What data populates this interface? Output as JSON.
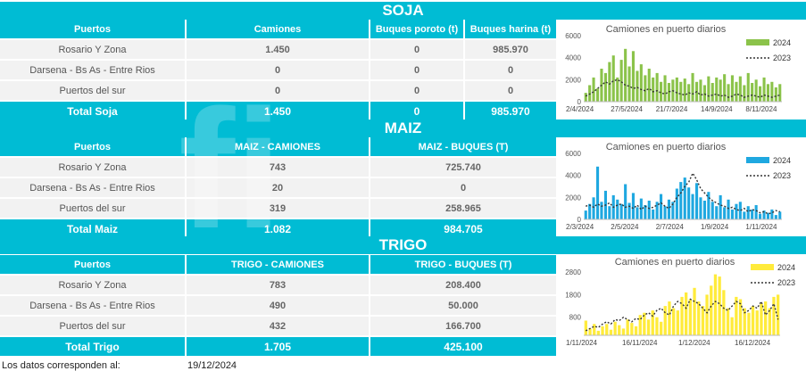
{
  "soja": {
    "title": "SOJA",
    "headers": [
      "Puertos",
      "Camiones",
      "Buques poroto (t)",
      "Buques harina (t)"
    ],
    "rows": [
      [
        "Rosario Y Zona",
        "1.450",
        "0",
        "985.970"
      ],
      [
        "Darsena - Bs As - Entre Rios",
        "0",
        "0",
        "0"
      ],
      [
        "Puertos del sur",
        "0",
        "0",
        "0"
      ]
    ],
    "total": [
      "Total Soja",
      "1.450",
      "0",
      "985.970"
    ]
  },
  "maiz": {
    "title": "MAIZ",
    "headers": [
      "Puertos",
      "MAIZ - CAMIONES",
      "MAIZ - BUQUES (T)"
    ],
    "rows": [
      [
        "Rosario Y Zona",
        "743",
        "725.740"
      ],
      [
        "Darsena - Bs As - Entre Rios",
        "20",
        "0"
      ],
      [
        "Puertos del sur",
        "319",
        "258.965"
      ]
    ],
    "total": [
      "Total Maiz",
      "1.082",
      "984.705"
    ]
  },
  "trigo": {
    "title": "TRIGO",
    "headers": [
      "Puertos",
      "TRIGO - CAMIONES",
      "TRIGO - BUQUES (T)"
    ],
    "rows": [
      [
        "Rosario Y Zona",
        "783",
        "208.400"
      ],
      [
        "Darsena - Bs As - Entre Rios",
        "490",
        "50.000"
      ],
      [
        "Puertos del sur",
        "432",
        "166.700"
      ]
    ],
    "total": [
      "Total Trigo",
      "1.705",
      "425.100"
    ]
  },
  "footer": {
    "label": "Los datos corresponden al:",
    "date": "19/12/2024"
  },
  "chart_data": [
    {
      "type": "bar+line",
      "title": "Camiones en puerto diarios",
      "series": [
        {
          "name": "2024",
          "kind": "bar",
          "color": "#8bc34a",
          "values": [
            800,
            1500,
            2200,
            1200,
            3000,
            2600,
            3600,
            4200,
            2200,
            3800,
            4800,
            3200,
            4600,
            2800,
            3400,
            2400,
            3000,
            2200,
            2600,
            1800,
            2400,
            1700,
            2000,
            2200,
            1800,
            2100,
            1600,
            2600,
            1800,
            2000,
            1500,
            2300,
            1700,
            2200,
            2000,
            2500,
            1600,
            2400,
            1800,
            2300,
            1500,
            2600,
            1700,
            2000,
            1400,
            2200,
            1600,
            1800,
            1300,
            1600
          ]
        },
        {
          "name": "2023",
          "kind": "line",
          "color": "#333333",
          "values": [
            500,
            700,
            900,
            1200,
            1500,
            1800,
            1600,
            1900,
            2000,
            1800,
            1500,
            1400,
            1200,
            1300,
            1100,
            1000,
            1200,
            900,
            1000,
            800,
            700,
            900,
            1000,
            800,
            700,
            600,
            800,
            700,
            900,
            600,
            700,
            500,
            600,
            700,
            500,
            600,
            400,
            500,
            700,
            600,
            400,
            500,
            600,
            500,
            400,
            600,
            500,
            400,
            500,
            600
          ]
        }
      ],
      "x_ticks": [
        "2/4/2024",
        "27/5/2024",
        "21/7/2024",
        "14/9/2024",
        "8/11/2024"
      ],
      "y_ticks": [
        0,
        2000,
        4000,
        6000
      ],
      "ylim": [
        0,
        6000
      ]
    },
    {
      "type": "bar+line",
      "title": "Camiones en puerto diarios",
      "series": [
        {
          "name": "2024",
          "kind": "bar",
          "color": "#1fa8e0",
          "values": [
            800,
            1400,
            2000,
            4800,
            1600,
            2600,
            1200,
            2200,
            1800,
            1400,
            3200,
            1500,
            2400,
            1100,
            1900,
            1300,
            1700,
            900,
            1600,
            2300,
            1200,
            1800,
            1600,
            2800,
            3400,
            3800,
            2900,
            2300,
            3300,
            2000,
            1700,
            2500,
            1600,
            1200,
            2200,
            1100,
            1800,
            900,
            1400,
            1600,
            700,
            1200,
            900,
            1300,
            500,
            800,
            600,
            900,
            400,
            700
          ]
        },
        {
          "name": "2023",
          "kind": "line",
          "color": "#333333",
          "values": [
            1200,
            1300,
            1100,
            1400,
            1200,
            1300,
            1500,
            1100,
            1300,
            1400,
            1100,
            1200,
            1000,
            1300,
            900,
            1200,
            1000,
            1100,
            1300,
            1500,
            1200,
            1000,
            1400,
            2000,
            2400,
            3000,
            3400,
            4200,
            3600,
            2800,
            2400,
            2000,
            1700,
            1500,
            1300,
            1200,
            1000,
            1100,
            900,
            800,
            1000,
            700,
            900,
            800,
            600,
            700,
            500,
            600,
            800,
            700
          ]
        }
      ],
      "x_ticks": [
        "2/3/2024",
        "2/5/2024",
        "2/7/2024",
        "1/9/2024",
        "1/11/2024"
      ],
      "y_ticks": [
        0,
        2000,
        4000,
        6000
      ],
      "ylim": [
        0,
        6000
      ]
    },
    {
      "type": "bar+line",
      "title": "Camiones en puerto diarios",
      "series": [
        {
          "name": "2024",
          "kind": "bar",
          "color": "#ffeb3b",
          "values": [
            650,
            300,
            500,
            200,
            400,
            500,
            250,
            600,
            450,
            300,
            700,
            550,
            400,
            900,
            1000,
            700,
            1100,
            800,
            600,
            1300,
            1500,
            1200,
            1100,
            1700,
            1900,
            1600,
            2100,
            1500,
            1300,
            1800,
            2200,
            2700,
            2600,
            2000,
            1200,
            800,
            1700,
            1600,
            1200,
            1000,
            1300,
            1100,
            1400,
            1500,
            1200,
            1700,
            1800
          ]
        },
        {
          "name": "2023",
          "kind": "line",
          "color": "#333333",
          "values": [
            200,
            300,
            400,
            350,
            500,
            600,
            500,
            700,
            650,
            800,
            700,
            600,
            750,
            700,
            900,
            1000,
            850,
            1100,
            1200,
            1000,
            900,
            1300,
            1500,
            1400,
            1200,
            1600,
            1500,
            1400,
            1200,
            1000,
            1300,
            1500,
            1400,
            1200,
            1100,
            1300,
            1500,
            1400,
            1000,
            1100,
            1300,
            1200,
            1500,
            900,
            1100,
            1400,
            700
          ]
        }
      ],
      "x_ticks": [
        "1/11/2024",
        "16/11/2024",
        "1/12/2024",
        "16/12/2024"
      ],
      "y_ticks": [
        800,
        1800,
        2800
      ],
      "ylim": [
        0,
        3000
      ]
    }
  ]
}
